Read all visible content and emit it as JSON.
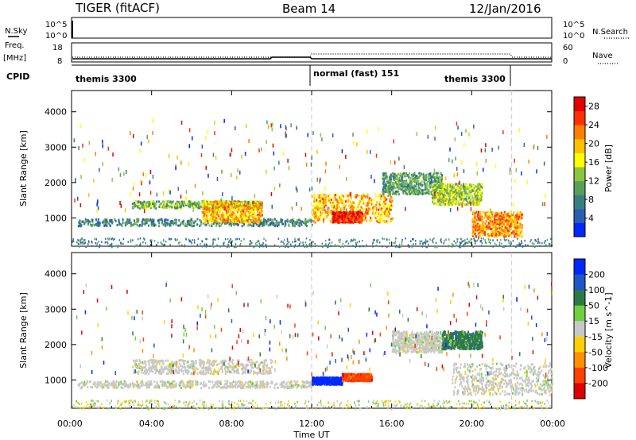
{
  "header": {
    "title": "TIGER (fitACF)",
    "beam": "Beam 14",
    "date": "12/Jan/2016"
  },
  "top_panels": {
    "nsky_label": "N.Sky",
    "nsky_ticks": [
      "10^5",
      "10^0"
    ],
    "nsearch_label": "N.Search",
    "freq_label": "Freq.",
    "freq_unit": "[MHz]",
    "freq_ticks": [
      "18",
      "8"
    ],
    "nave_label": "Nave",
    "nave_ticks": [
      "60",
      "0"
    ],
    "cpid_label": "CPID",
    "cpid_segments": [
      {
        "label": "themis 3300",
        "start_hour": 0,
        "end_hour": 12
      },
      {
        "label": "normal (fast) 151",
        "start_hour": 12,
        "end_hour": 22
      },
      {
        "label": "themis 3300",
        "start_hour": 22,
        "end_hour": 24
      }
    ]
  },
  "chart_data": [
    {
      "type": "heatmap",
      "title": "Power",
      "xlabel": "",
      "ylabel": "Slant Range [km]",
      "xlim_hours": [
        0,
        24
      ],
      "ylim_km": [
        200,
        4600
      ],
      "x_tick_labels": [
        "00:00",
        "04:00",
        "08:00",
        "12:00",
        "16:00",
        "20:00",
        "00:00"
      ],
      "y_ticks": [
        1000,
        2000,
        3000,
        4000
      ],
      "colorbar": {
        "label": "Power [dB]",
        "ticks": [
          4,
          8,
          12,
          16,
          20,
          24,
          28
        ],
        "range": [
          0,
          30
        ],
        "colors": [
          "#0028ff",
          "#2a5fb0",
          "#3a7f80",
          "#58a05a",
          "#8cc640",
          "#ffff00",
          "#ffc000",
          "#ff8000",
          "#ff3000",
          "#e00000"
        ]
      },
      "features": [
        {
          "x": [
            0.3,
            12
          ],
          "y": [
            800,
            1000
          ],
          "level": 8
        },
        {
          "x": [
            3,
            9.5
          ],
          "y": [
            1300,
            1500
          ],
          "level": 12
        },
        {
          "x": [
            6.5,
            9.5
          ],
          "y": [
            900,
            1500
          ],
          "level": 20
        },
        {
          "x": [
            12,
            16
          ],
          "y": [
            900,
            1700
          ],
          "level": 20
        },
        {
          "x": [
            13,
            14.5
          ],
          "y": [
            900,
            1200
          ],
          "level": 26
        },
        {
          "x": [
            15.5,
            18.5
          ],
          "y": [
            1700,
            2300
          ],
          "level": 10
        },
        {
          "x": [
            18,
            20.5
          ],
          "y": [
            1400,
            2000
          ],
          "level": 14
        },
        {
          "x": [
            20,
            22.5
          ],
          "y": [
            500,
            1200
          ],
          "level": 22
        }
      ]
    },
    {
      "type": "heatmap",
      "title": "Velocity",
      "xlabel": "Time UT",
      "ylabel": "Slant Range [km]",
      "xlim_hours": [
        0,
        24
      ],
      "ylim_km": [
        200,
        4600
      ],
      "x_tick_labels": [
        "00:00",
        "04:00",
        "08:00",
        "12:00",
        "16:00",
        "20:00",
        "00:00"
      ],
      "y_ticks": [
        1000,
        2000,
        3000,
        4000
      ],
      "colorbar": {
        "label": "Velocity [m s^-1]",
        "ticks": [
          "200",
          "100",
          "50",
          "15",
          "-15",
          "-50",
          "-100",
          "-200"
        ],
        "colors": [
          "#0028ff",
          "#1f57c8",
          "#2e7a46",
          "#6fd040",
          "#c8c8c8",
          "#ffd000",
          "#ff9000",
          "#ff4000",
          "#e00000"
        ]
      },
      "features": [
        {
          "x": [
            0.3,
            12
          ],
          "y": [
            800,
            1000
          ],
          "velocity_class": "ground"
        },
        {
          "x": [
            3,
            10
          ],
          "y": [
            1200,
            1600
          ],
          "velocity_class": "ground"
        },
        {
          "x": [
            12,
            13.5
          ],
          "y": [
            900,
            1100
          ],
          "velocity_class": "200"
        },
        {
          "x": [
            13.5,
            15
          ],
          "y": [
            1000,
            1200
          ],
          "velocity_class": "-100"
        },
        {
          "x": [
            16,
            18.5
          ],
          "y": [
            1800,
            2400
          ],
          "velocity_class": "ground"
        },
        {
          "x": [
            18.5,
            20.5
          ],
          "y": [
            1900,
            2400
          ],
          "velocity_class": "50"
        },
        {
          "x": [
            19,
            24
          ],
          "y": [
            600,
            1500
          ],
          "velocity_class": "ground"
        }
      ]
    }
  ]
}
